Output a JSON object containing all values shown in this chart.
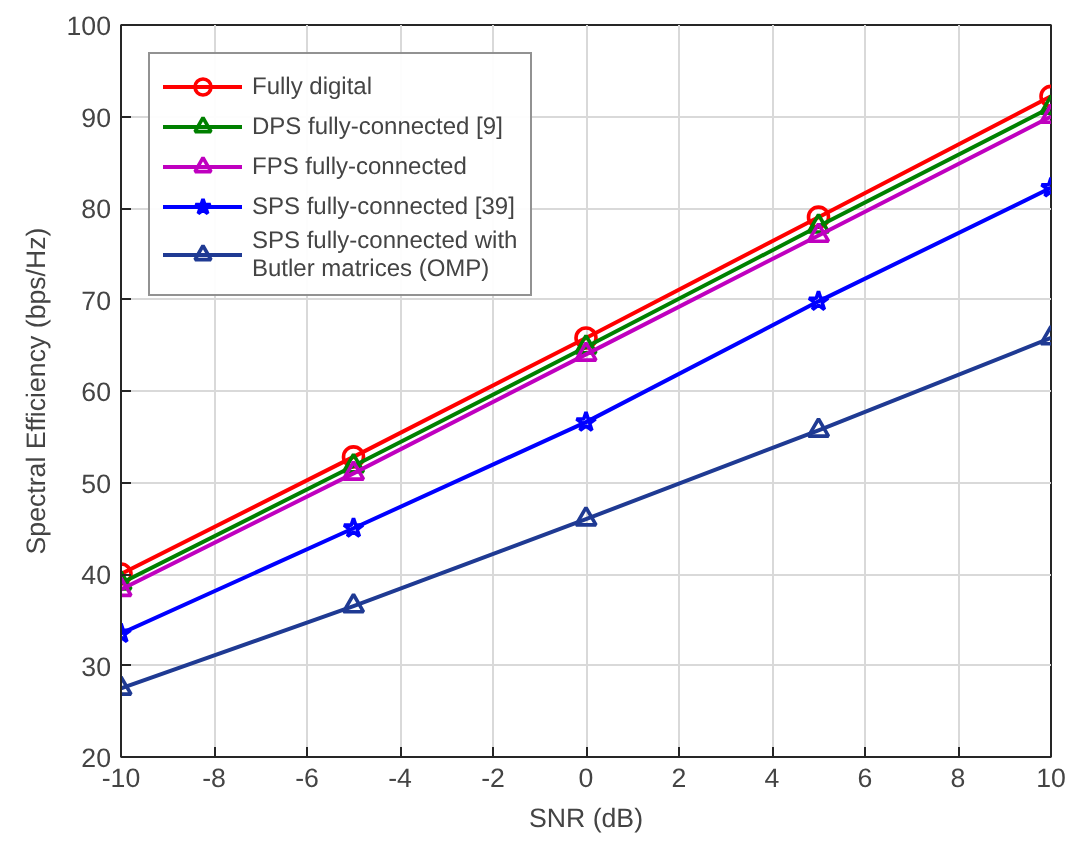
{
  "chart_data": {
    "type": "line",
    "xlabel": "SNR (dB)",
    "ylabel": "Spectral Efficiency (bps/Hz)",
    "x": [
      -10,
      -5,
      0,
      5,
      10
    ],
    "xlim": [
      -10,
      10
    ],
    "xticks": [
      -10,
      -8,
      -6,
      -4,
      -2,
      0,
      2,
      4,
      6,
      8,
      10
    ],
    "ylim": [
      20,
      100
    ],
    "yticks": [
      20,
      30,
      40,
      50,
      60,
      70,
      80,
      90,
      100
    ],
    "grid": true,
    "legend": "top left",
    "line_style": "solid",
    "series": [
      {
        "name": "Fully digital",
        "color": "#ff0000",
        "marker": "circle",
        "values": [
          40,
          52.8,
          65.8,
          79,
          92.2
        ]
      },
      {
        "name": "DPS fully-connected [9]",
        "color": "#008000",
        "marker": "triangle",
        "values": [
          39,
          51.8,
          64.8,
          78,
          91
        ]
      },
      {
        "name": "FPS fully-connected",
        "color": "#bf00bf",
        "marker": "triangle",
        "values": [
          38.3,
          51,
          64,
          77,
          90
        ]
      },
      {
        "name": "SPS fully-connected [39]",
        "color": "#0000ff",
        "marker": "star",
        "values": [
          33.5,
          45,
          56.6,
          69.8,
          82.2
        ]
      },
      {
        "name": "SPS fully-connected with\nButler matrices (OMP)",
        "color": "#1f3a93",
        "marker": "triangle",
        "values": [
          27.5,
          36.5,
          46,
          55.7,
          65.8
        ]
      }
    ]
  }
}
